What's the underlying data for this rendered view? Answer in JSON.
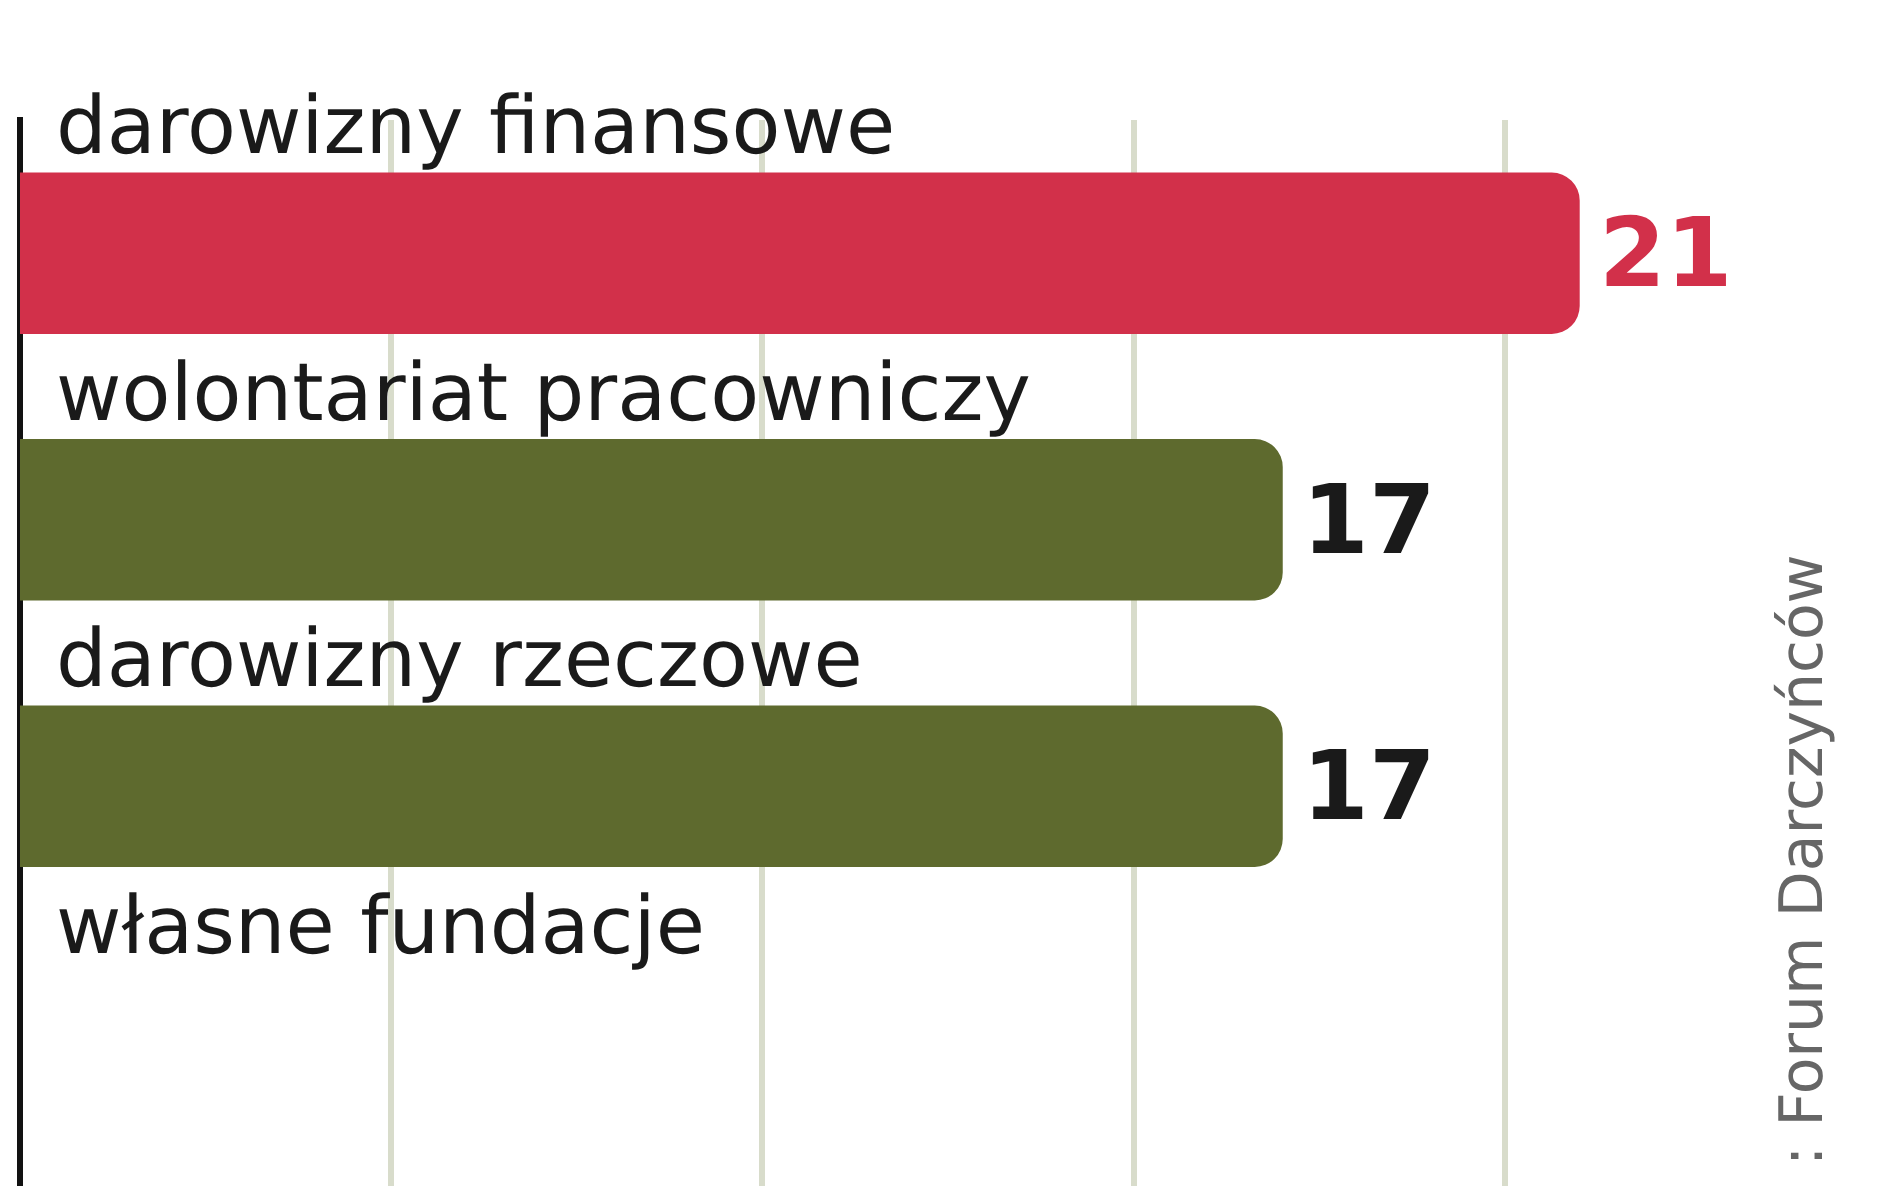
{
  "chart_data": {
    "type": "bar",
    "orientation": "horizontal",
    "categories": [
      "darowizny finansowe",
      "wolontariat pracowniczy",
      "darowizny rzeczowe",
      "własne fundacje"
    ],
    "values": [
      21,
      17,
      17,
      null
    ],
    "colors": [
      "#d2304a",
      "#5e6a2e",
      "#5e6a2e",
      "#5e6a2e"
    ],
    "xticks": [
      {
        "value": 5,
        "label": null
      },
      {
        "value": 10,
        "label": null
      },
      {
        "value": 15,
        "label": null
      },
      {
        "value": 20,
        "label": null
      }
    ],
    "grid": "x",
    "tick_labels": "y",
    "data_labels": true,
    "annotations": [
      ": Forum Darczyńców"
    ]
  }
}
